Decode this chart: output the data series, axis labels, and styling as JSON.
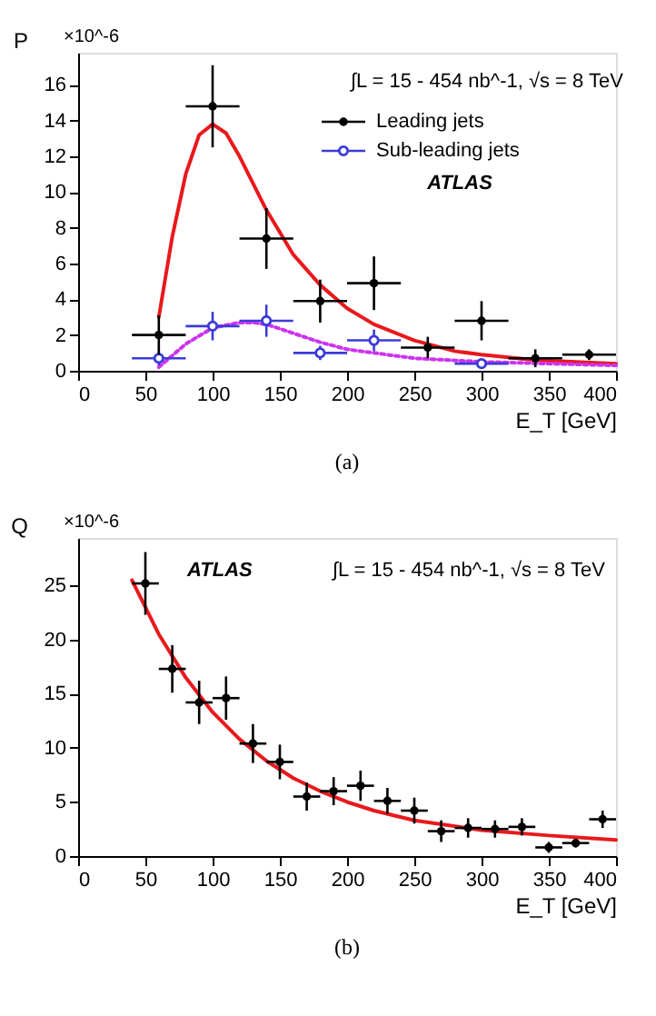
{
  "chart_data": [
    {
      "type": "scatter",
      "title": "(a)",
      "xlabel": "E_T [GeV]",
      "ylabel": "P",
      "xlim": [
        0,
        400
      ],
      "xticks": [
        0,
        50,
        100,
        150,
        200,
        250,
        300,
        350,
        400
      ],
      "ylim": [
        0,
        17.8
      ],
      "yticks": [
        0,
        2,
        4,
        6,
        8,
        10,
        12,
        14,
        16
      ],
      "grid": false,
      "legend": "top right",
      "marker": "circle",
      "annotations": [
        "×10^-6",
        "∫L = 15 - 454 nb^-1, √s = 8 TeV",
        "ATLAS"
      ],
      "series": [
        {
          "name": "Leading jets",
          "color": "#000000",
          "x": [
            60,
            100,
            140,
            180,
            220,
            260,
            300,
            340,
            380
          ],
          "values": [
            2.0,
            14.8,
            7.4,
            3.9,
            4.9,
            1.3,
            2.8,
            0.7,
            0.9
          ],
          "errors": [
            1.1,
            2.3,
            1.7,
            1.2,
            1.5,
            0.6,
            1.1,
            0.5,
            0.3
          ],
          "xerrors": [
            20,
            20,
            20,
            20,
            20,
            20,
            20,
            20,
            20
          ]
        },
        {
          "name": "Sub-leading jets",
          "color": "#3b3bd9",
          "x": [
            60,
            100,
            140,
            180,
            220,
            260,
            300
          ],
          "values": [
            0.7,
            2.5,
            2.8,
            1.0,
            1.7,
            null,
            0.4
          ],
          "errors": [
            0.4,
            0.8,
            0.9,
            0.4,
            0.6,
            null,
            0.2
          ],
          "xerrors": [
            20,
            20,
            20,
            20,
            20,
            null,
            20
          ]
        },
        {
          "type": "line",
          "color": "#e8191c",
          "line_style": "solid",
          "marker": "none",
          "x": [
            60,
            70,
            80,
            90,
            100,
            110,
            120,
            140,
            160,
            180,
            200,
            220,
            250,
            280,
            300,
            340,
            400
          ],
          "values": [
            3.0,
            7.5,
            11.0,
            13.2,
            13.8,
            13.3,
            12.0,
            9.0,
            6.5,
            4.8,
            3.5,
            2.6,
            1.7,
            1.1,
            0.9,
            0.6,
            0.4
          ]
        },
        {
          "type": "line",
          "color": "#cc33ee",
          "line_style": "dotted",
          "marker": "none",
          "x": [
            60,
            80,
            100,
            120,
            130,
            140,
            160,
            180,
            200,
            250,
            300,
            400
          ],
          "values": [
            0.2,
            1.5,
            2.4,
            2.7,
            2.7,
            2.6,
            2.1,
            1.6,
            1.2,
            0.7,
            0.5,
            0.3
          ]
        }
      ]
    },
    {
      "type": "scatter",
      "title": "(b)",
      "xlabel": "E_T [GeV]",
      "ylabel": "Q",
      "xlim": [
        0,
        400
      ],
      "xticks": [
        0,
        50,
        100,
        150,
        200,
        250,
        300,
        350,
        400
      ],
      "ylim": [
        0,
        29.4
      ],
      "yticks": [
        0,
        5,
        10,
        15,
        20,
        25
      ],
      "grid": false,
      "legend": false,
      "marker": "circle",
      "annotations": [
        "×10^-6",
        "ATLAS",
        "∫L = 15 - 454 nb^-1, √s = 8 TeV"
      ],
      "series": [
        {
          "color": "#000000",
          "x": [
            50,
            70,
            90,
            110,
            130,
            150,
            170,
            190,
            210,
            230,
            250,
            270,
            290,
            310,
            330,
            350,
            370,
            390
          ],
          "values": [
            25.2,
            17.3,
            14.2,
            14.6,
            10.4,
            8.7,
            5.5,
            6.0,
            6.5,
            5.1,
            4.2,
            2.3,
            2.6,
            2.5,
            2.7,
            0.8,
            1.2,
            3.4
          ],
          "errors": [
            2.9,
            2.2,
            2.0,
            2.0,
            1.8,
            1.6,
            1.3,
            1.3,
            1.4,
            1.2,
            1.2,
            1.0,
            0.9,
            0.8,
            0.8,
            0.5,
            0.4,
            0.8
          ],
          "xerrors": [
            10,
            10,
            10,
            10,
            10,
            10,
            10,
            10,
            10,
            10,
            10,
            10,
            10,
            10,
            10,
            10,
            10,
            10
          ]
        },
        {
          "type": "line",
          "color": "#e8191c",
          "line_style": "solid",
          "marker": "none",
          "x": [
            40,
            60,
            80,
            100,
            120,
            140,
            160,
            180,
            200,
            220,
            250,
            300,
            350,
            400
          ],
          "values": [
            25.5,
            20.5,
            16.5,
            13.3,
            10.8,
            8.8,
            7.2,
            6.0,
            5.0,
            4.2,
            3.3,
            2.4,
            1.9,
            1.5
          ]
        }
      ]
    }
  ]
}
